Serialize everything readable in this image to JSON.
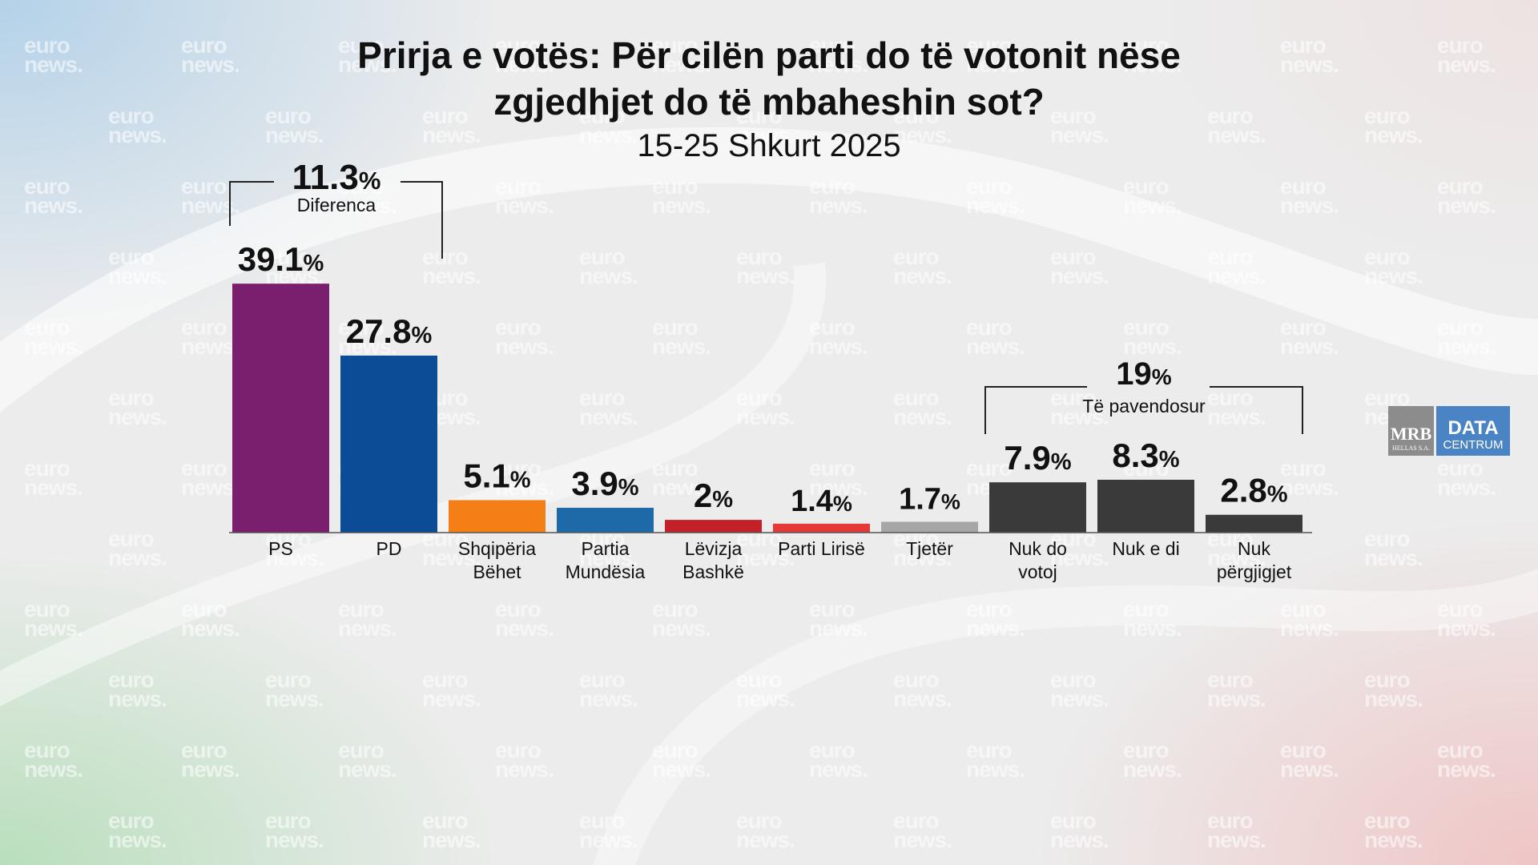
{
  "header": {
    "title_line1": "Prirja e votës: Për cilën parti do të votonit nëse",
    "title_line2": "zgjedhjet do të mbaheshin sot?",
    "subtitle": "15-25 Shkurt 2025"
  },
  "watermark": {
    "line1": "euro",
    "line2": "news."
  },
  "logos": {
    "mrb": "MRB",
    "mrb_sub": "HELLAS S.A.",
    "data": "DATA",
    "data_sub": "CENTRUM"
  },
  "chart_data": {
    "type": "bar",
    "unit": "%",
    "categories": [
      [
        "PS"
      ],
      [
        "PD"
      ],
      [
        "Shqipëria",
        "Bëhet"
      ],
      [
        "Partia",
        "Mundësia"
      ],
      [
        "Lëvizja",
        "Bashkë"
      ],
      [
        "Parti Lirisë"
      ],
      [
        "Tjetër"
      ],
      [
        "Nuk do",
        "votoj"
      ],
      [
        "Nuk e di"
      ],
      [
        "Nuk",
        "përgjigjet"
      ]
    ],
    "value_labels": [
      "39.1",
      "27.8",
      "5.1",
      "3.9",
      "2",
      "1.4",
      "1.7",
      "7.9",
      "8.3",
      "2.8"
    ],
    "values": [
      39.1,
      27.8,
      5.1,
      3.9,
      2.0,
      1.4,
      1.7,
      7.9,
      8.3,
      2.8
    ],
    "colors": [
      "#7a1f6e",
      "#0c4c96",
      "#f57f17",
      "#1e6aa8",
      "#c3202a",
      "#e53935",
      "#a6a6a6",
      "#3a3a3a",
      "#3a3a3a",
      "#3a3a3a"
    ],
    "annotations": [
      {
        "value": "11.3",
        "unit": "%",
        "label": "Diferenca",
        "from_index": 0,
        "to_index": 1
      },
      {
        "value": "19",
        "unit": "%",
        "label": "Të pavendosur",
        "from_index": 7,
        "to_index": 9
      }
    ],
    "ylim": [
      0,
      40
    ],
    "grid": false,
    "legend": "none"
  }
}
